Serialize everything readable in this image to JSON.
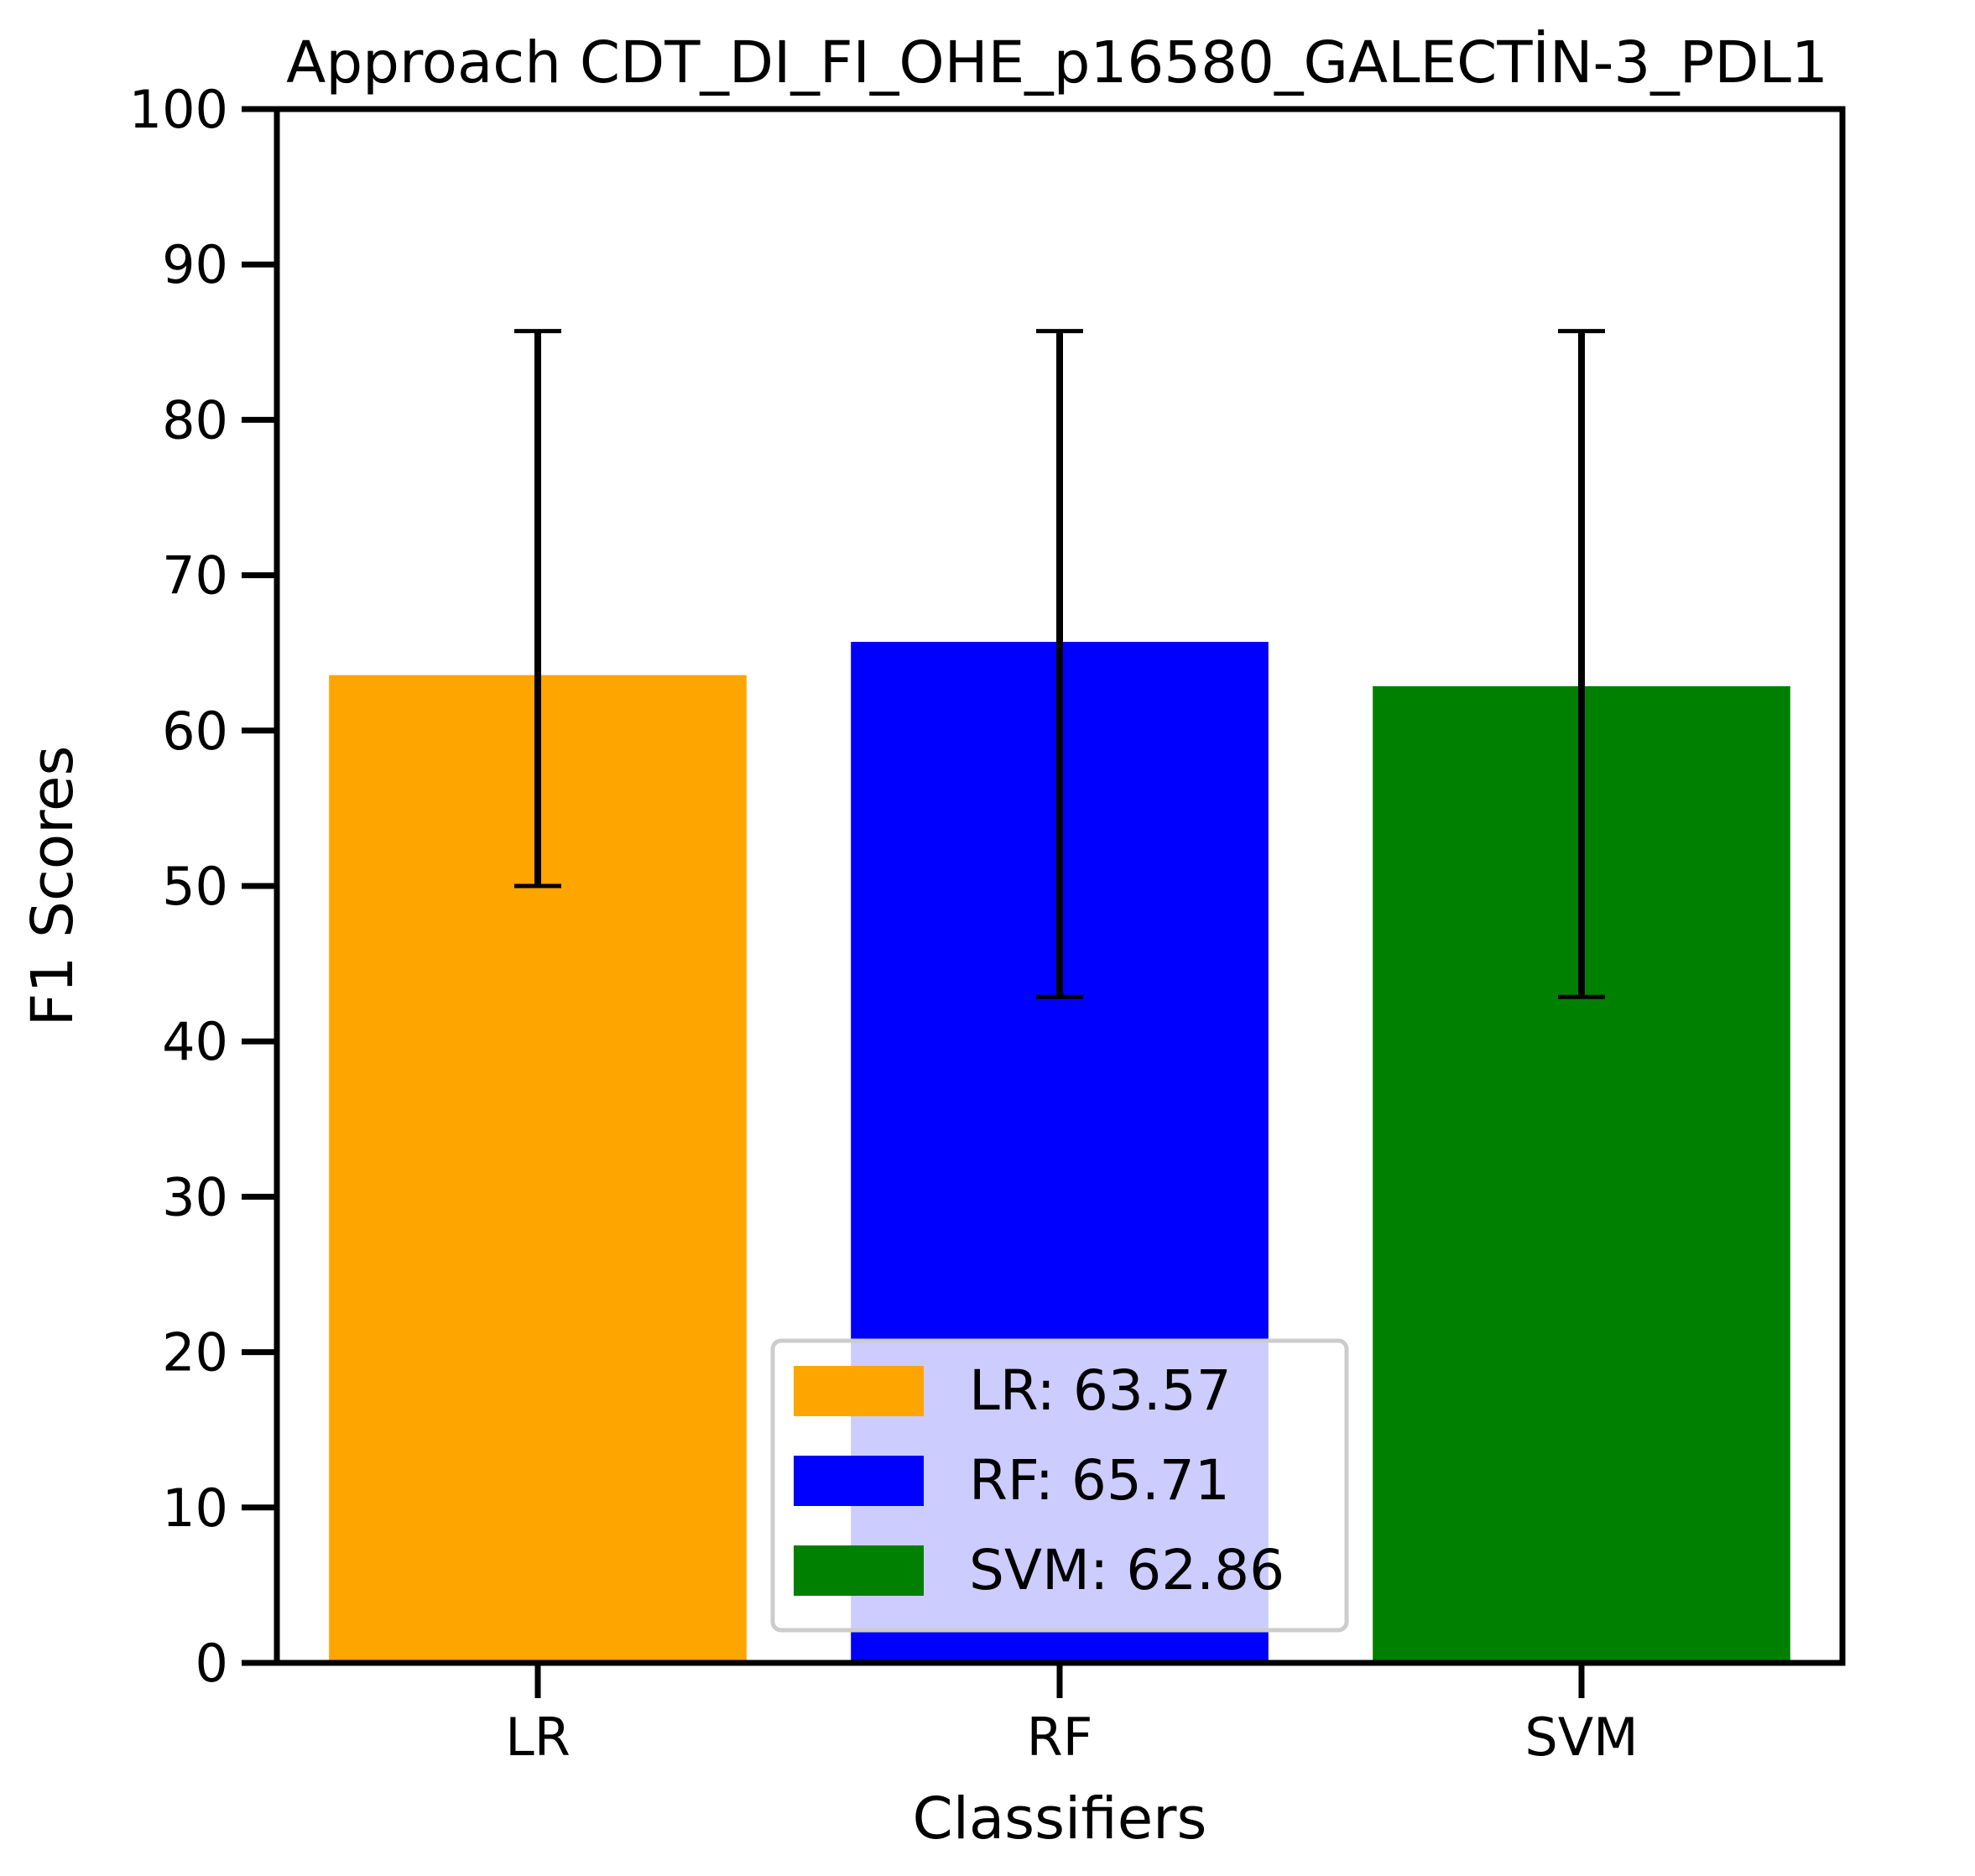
{
  "chart_data": {
    "type": "bar",
    "title": "Approach CDT_DI_FI_OHE_p16580_GALECTİN-3_PDL1",
    "xlabel": "Classifiers",
    "ylabel": "F1 Scores",
    "ylim": [
      0,
      100
    ],
    "yticks": [
      "0",
      "10",
      "20",
      "30",
      "40",
      "50",
      "60",
      "70",
      "80",
      "90",
      "100"
    ],
    "categories": [
      "LR",
      "RF",
      "SVM"
    ],
    "values": [
      63.57,
      65.71,
      62.86
    ],
    "error_low": [
      50.0,
      42.86,
      42.86
    ],
    "error_high": [
      85.71,
      85.71,
      85.71
    ],
    "colors": [
      "#ffa500",
      "#0000ff",
      "#008000"
    ],
    "grid": false,
    "legend_position": "lower-center",
    "legend": [
      {
        "label": "LR: 63.57",
        "color": "#ffa500"
      },
      {
        "label": "RF: 65.71",
        "color": "#0000ff"
      },
      {
        "label": "SVM: 62.86",
        "color": "#008000"
      }
    ]
  }
}
